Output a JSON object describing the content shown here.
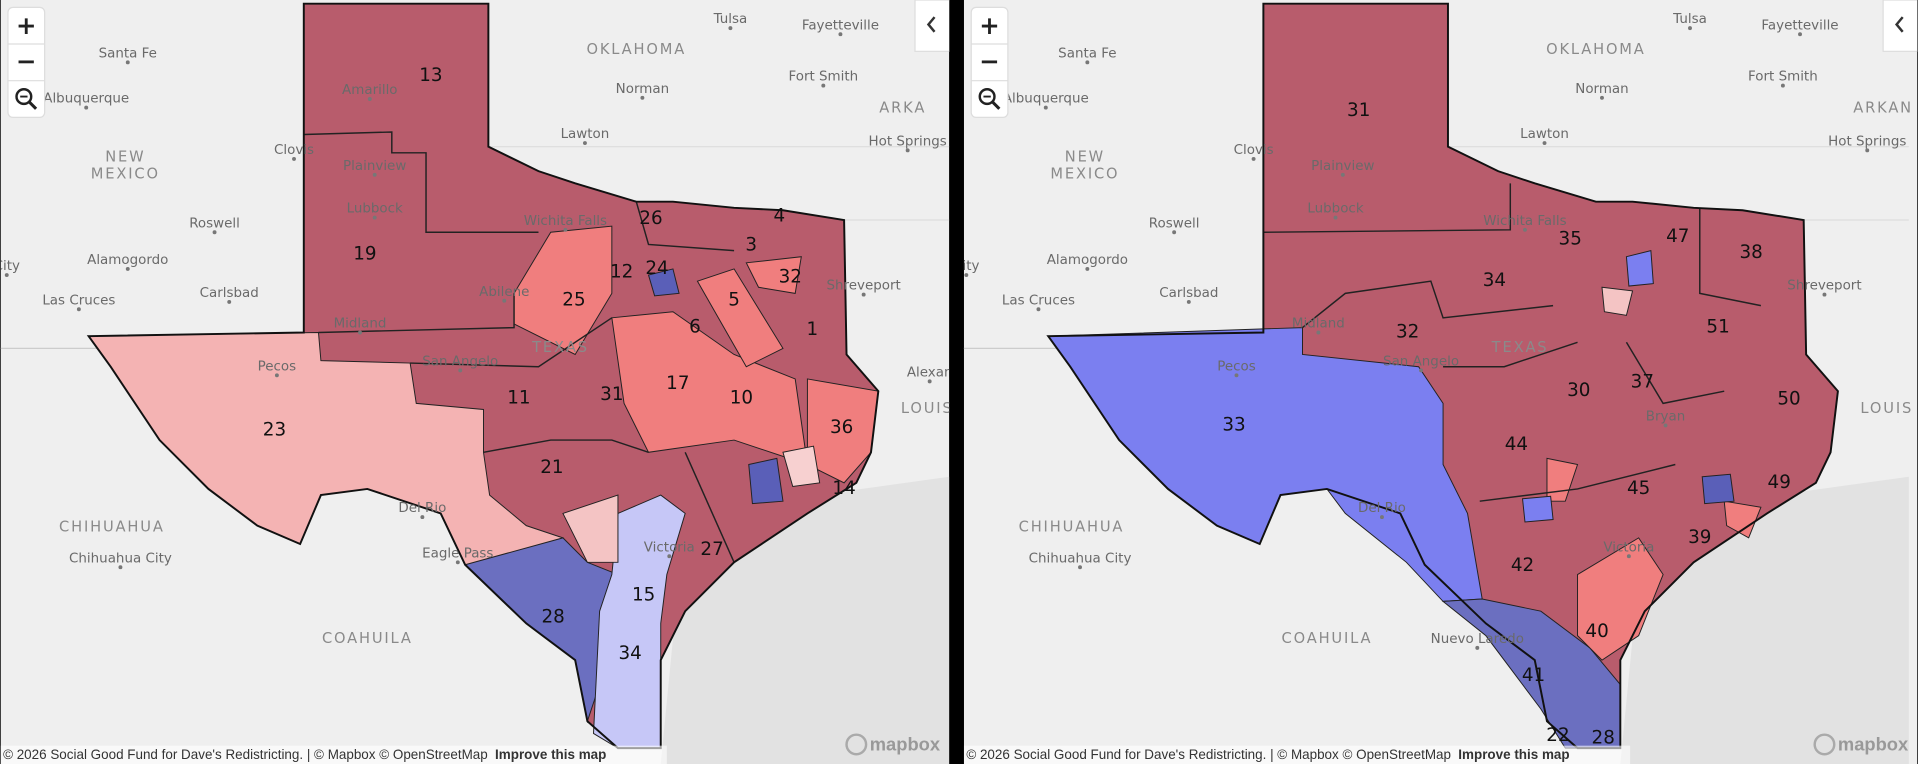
{
  "panels": [
    {
      "zoom_in": "+",
      "zoom_out": "−",
      "place_labels": [
        "Tulsa",
        "Fayetteville",
        "Santa Fe",
        "OKLAHOMA",
        "Norman",
        "Fort Smith",
        "ARKA",
        "Albuquerque",
        "Lawton",
        "Hot Springs",
        "NEW",
        "MEXICO",
        "Clovis",
        "Amarillo",
        "Plainview",
        "Roswell",
        "Lubbock",
        "Wichita Falls",
        "Alamogordo",
        "Carlsbad",
        "Abilene",
        "Las Cruces",
        "Shreveport",
        "Midland",
        "San Angelo",
        "TEXAS",
        "Pecos",
        "Alexan",
        "LOUIS",
        "Del Rio",
        "CHIHUAHUA",
        "Chihuahua City",
        "Eagle Pass",
        "Victoria",
        "COAHUILA",
        "City"
      ],
      "districts": [
        "13",
        "19",
        "4",
        "26",
        "3",
        "12",
        "24",
        "32",
        "25",
        "5",
        "6",
        "1",
        "11",
        "31",
        "17",
        "10",
        "23",
        "36",
        "21",
        "14",
        "27",
        "15",
        "28",
        "34"
      ],
      "attribution": "© 2026 Social Good Fund for Dave's Redistricting. | © Mapbox © OpenStreetMap",
      "improve_link": "Improve this map",
      "logo": "mapbox"
    },
    {
      "zoom_in": "+",
      "zoom_out": "−",
      "place_labels": [
        "Tulsa",
        "Fayetteville",
        "Santa Fe",
        "OKLAHOMA",
        "Norman",
        "Fort Smith",
        "ARKAN",
        "Albuquerque",
        "Lawton",
        "Hot Springs",
        "NEW",
        "MEXICO",
        "Clovis",
        "Plainview",
        "Roswell",
        "Lubbock",
        "Wichita Falls",
        "Alamogordo",
        "Carlsbad",
        "Las Cruces",
        "Shreveport",
        "Midland",
        "San Angelo",
        "TEXAS",
        "Pecos",
        "Bryan",
        "LOUIS",
        "Del Rio",
        "CHIHUAHUA",
        "Chihuahua City",
        "Nuevo Laredo",
        "Victoria",
        "COAHUILA",
        "City"
      ],
      "districts": [
        "31",
        "38",
        "47",
        "35",
        "34",
        "32",
        "51",
        "37",
        "30",
        "50",
        "33",
        "44",
        "45",
        "49",
        "39",
        "42",
        "40",
        "41",
        "28",
        "22"
      ],
      "attribution": "© 2026 Social Good Fund for Dave's Redistricting. | © Mapbox © OpenStreetMap",
      "improve_link": "Improve this map",
      "logo": "mapbox"
    }
  ]
}
